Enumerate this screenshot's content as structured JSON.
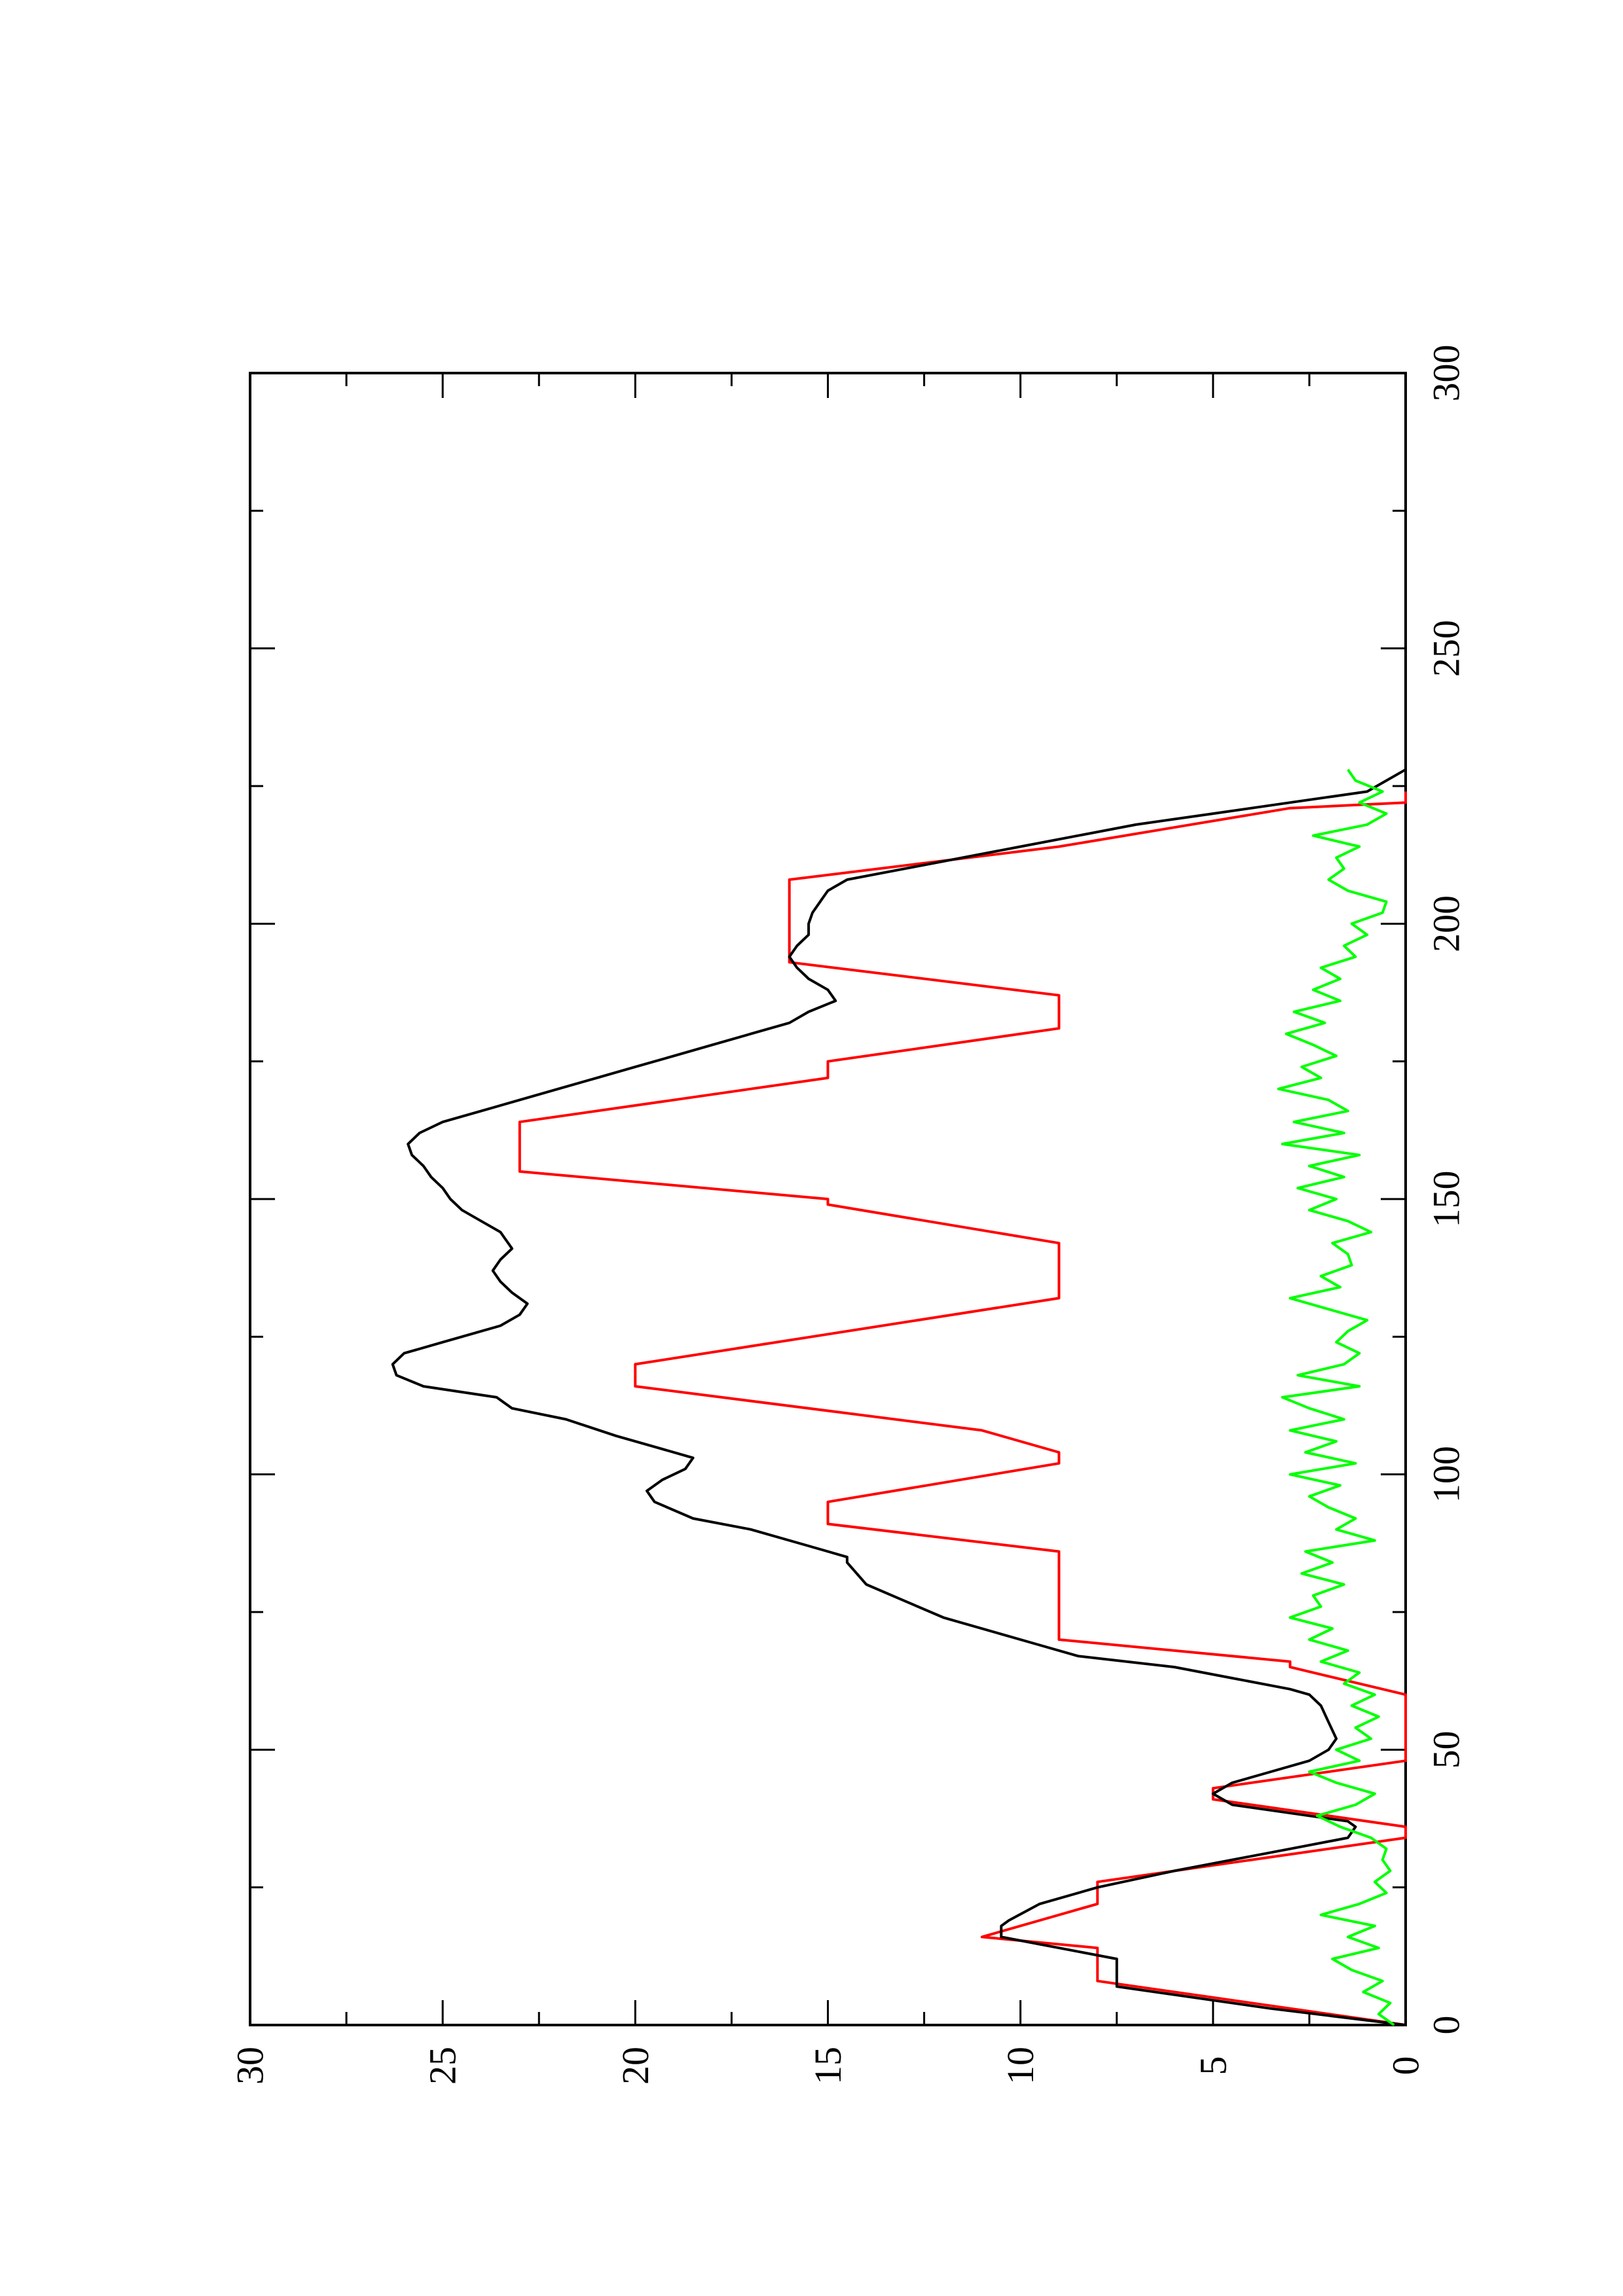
{
  "chart_data": {
    "type": "line",
    "orientation": "rotated 90 degrees counter-clockwise",
    "title": "",
    "xlabel": "",
    "ylabel": "",
    "xlim": [
      0,
      300
    ],
    "ylim": [
      0,
      30
    ],
    "x_ticks": [
      "0",
      "50",
      "100",
      "150",
      "200",
      "250",
      "300"
    ],
    "y_ticks": [
      "0",
      "5",
      "10",
      "15",
      "20",
      "25",
      "30"
    ],
    "grid": false,
    "legend": "none",
    "series": [
      {
        "color": "#ff0000",
        "x": [
          0,
          4,
          8,
          14,
          16,
          22,
          26,
          34,
          35,
          36,
          41,
          43,
          48,
          49,
          57,
          59,
          60,
          65,
          66,
          70,
          86,
          91,
          95,
          102,
          104,
          108,
          116,
          120,
          132,
          133,
          142,
          149,
          150,
          155,
          157,
          164,
          167,
          172,
          175,
          181,
          187,
          193,
          194,
          208,
          214,
          221,
          222,
          224
        ],
        "y": [
          0,
          4,
          8,
          8,
          11,
          8,
          8,
          0,
          0,
          0,
          5,
          5,
          0,
          0,
          0,
          0,
          0,
          3,
          3,
          9,
          9,
          15,
          15,
          9,
          9,
          11,
          20,
          20,
          9,
          9,
          9,
          15,
          15,
          23,
          23,
          23,
          20,
          15,
          15,
          9,
          9,
          16,
          16,
          16,
          9,
          3,
          0,
          0
        ]
      },
      {
        "color": "#000000",
        "x": [
          0,
          3,
          7,
          9,
          12,
          16,
          18,
          19,
          22,
          25,
          28,
          32,
          34,
          36,
          37,
          38,
          40,
          42,
          44,
          46,
          48,
          50,
          52,
          55,
          58,
          60,
          61,
          63,
          65,
          67,
          69,
          71,
          74,
          77,
          80,
          84,
          85,
          87,
          90,
          92,
          95,
          97,
          99,
          101,
          103,
          105,
          107,
          110,
          112,
          114,
          116,
          118,
          120,
          122,
          124,
          125,
          127,
          129,
          131,
          133,
          135,
          137,
          139,
          141,
          144,
          146,
          148,
          150,
          152,
          154,
          156,
          158,
          160,
          162,
          164,
          166,
          168,
          170,
          172,
          174,
          176,
          178,
          180,
          182,
          184,
          186,
          188,
          190,
          192,
          194,
          196,
          198,
          200,
          202,
          204,
          206,
          208,
          210,
          212,
          214,
          216,
          218,
          220,
          222,
          224,
          226,
          228
        ],
        "y": [
          0,
          3.5,
          7.5,
          7.5,
          7.5,
          10.5,
          10.5,
          10.3,
          9.5,
          8,
          6,
          3,
          1.5,
          1.3,
          1.5,
          2.5,
          4.5,
          5,
          4.5,
          3.5,
          2.5,
          2,
          1.8,
          2,
          2.2,
          2.5,
          3,
          4.5,
          6,
          8.5,
          9.5,
          10.5,
          12,
          13,
          14,
          14.5,
          14.5,
          15.5,
          17,
          18.5,
          19.5,
          19.7,
          19.3,
          18.7,
          18.5,
          19.5,
          20.5,
          21.8,
          23.2,
          23.6,
          25.5,
          26.2,
          26.3,
          26,
          25,
          24.5,
          23.5,
          23,
          22.8,
          23.2,
          23.5,
          23.7,
          23.5,
          23.2,
          23.5,
          24,
          24.5,
          24.8,
          25,
          25.3,
          25.5,
          25.8,
          25.9,
          25.6,
          25,
          24,
          23,
          22,
          21,
          20,
          19,
          18,
          17,
          16,
          15.5,
          14.8,
          15,
          15.5,
          15.8,
          16,
          15.8,
          15.5,
          15.5,
          15.4,
          15.2,
          15,
          14.5,
          13,
          11.5,
          10,
          8.5,
          7,
          5,
          3,
          1,
          0.5,
          0
        ]
      },
      {
        "color": "#00ff00",
        "x": [
          0,
          2,
          4,
          6,
          8,
          10,
          12,
          14,
          16,
          18,
          20,
          22,
          24,
          26,
          28,
          30,
          32,
          34,
          36,
          38,
          40,
          42,
          44,
          46,
          48,
          50,
          52,
          54,
          56,
          58,
          60,
          62,
          64,
          66,
          68,
          70,
          72,
          74,
          76,
          78,
          80,
          82,
          84,
          86,
          88,
          90,
          92,
          94,
          96,
          98,
          100,
          102,
          104,
          106,
          108,
          110,
          112,
          114,
          116,
          118,
          120,
          122,
          124,
          126,
          128,
          130,
          132,
          134,
          136,
          138,
          140,
          142,
          144,
          146,
          148,
          150,
          152,
          154,
          156,
          158,
          160,
          162,
          164,
          166,
          168,
          170,
          172,
          174,
          176,
          178,
          180,
          182,
          184,
          186,
          188,
          190,
          192,
          194,
          196,
          198,
          200,
          202,
          204,
          206,
          208,
          210,
          212,
          214,
          216,
          218,
          220,
          222,
          224,
          226,
          228
        ],
        "y": [
          0.3,
          0.7,
          0.4,
          1.1,
          0.6,
          1.4,
          1.9,
          0.7,
          1.5,
          0.8,
          2.2,
          1.2,
          0.5,
          0.8,
          0.4,
          0.6,
          0.5,
          0.9,
          1.7,
          2.3,
          1.3,
          0.8,
          1.8,
          2.5,
          1.2,
          1.8,
          0.9,
          1.3,
          0.7,
          1.4,
          0.8,
          1.6,
          1.2,
          2.2,
          1.5,
          2.5,
          1.9,
          3.0,
          2.2,
          2.4,
          1.6,
          2.7,
          1.9,
          2.6,
          0.8,
          1.8,
          1.3,
          2.0,
          2.5,
          1.7,
          3.0,
          1.3,
          2.6,
          1.8,
          3.0,
          1.6,
          2.5,
          3.2,
          1.2,
          2.8,
          1.6,
          1.2,
          1.8,
          1.5,
          1.0,
          2.0,
          3.0,
          1.7,
          2.2,
          1.4,
          1.5,
          1.9,
          0.9,
          1.5,
          2.5,
          1.8,
          2.8,
          1.6,
          2.5,
          1.2,
          3.2,
          1.6,
          2.9,
          1.5,
          2.0,
          3.3,
          2.2,
          2.7,
          1.8,
          2.4,
          3.1,
          2.1,
          2.9,
          1.7,
          2.4,
          1.7,
          2.2,
          1.3,
          1.6,
          1.0,
          1.4,
          0.6,
          0.5,
          1.5,
          2.0,
          1.6,
          1.8,
          1.2,
          2.4,
          1.0,
          0.5,
          1.2,
          0.6,
          1.3,
          1.5
        ]
      }
    ]
  }
}
